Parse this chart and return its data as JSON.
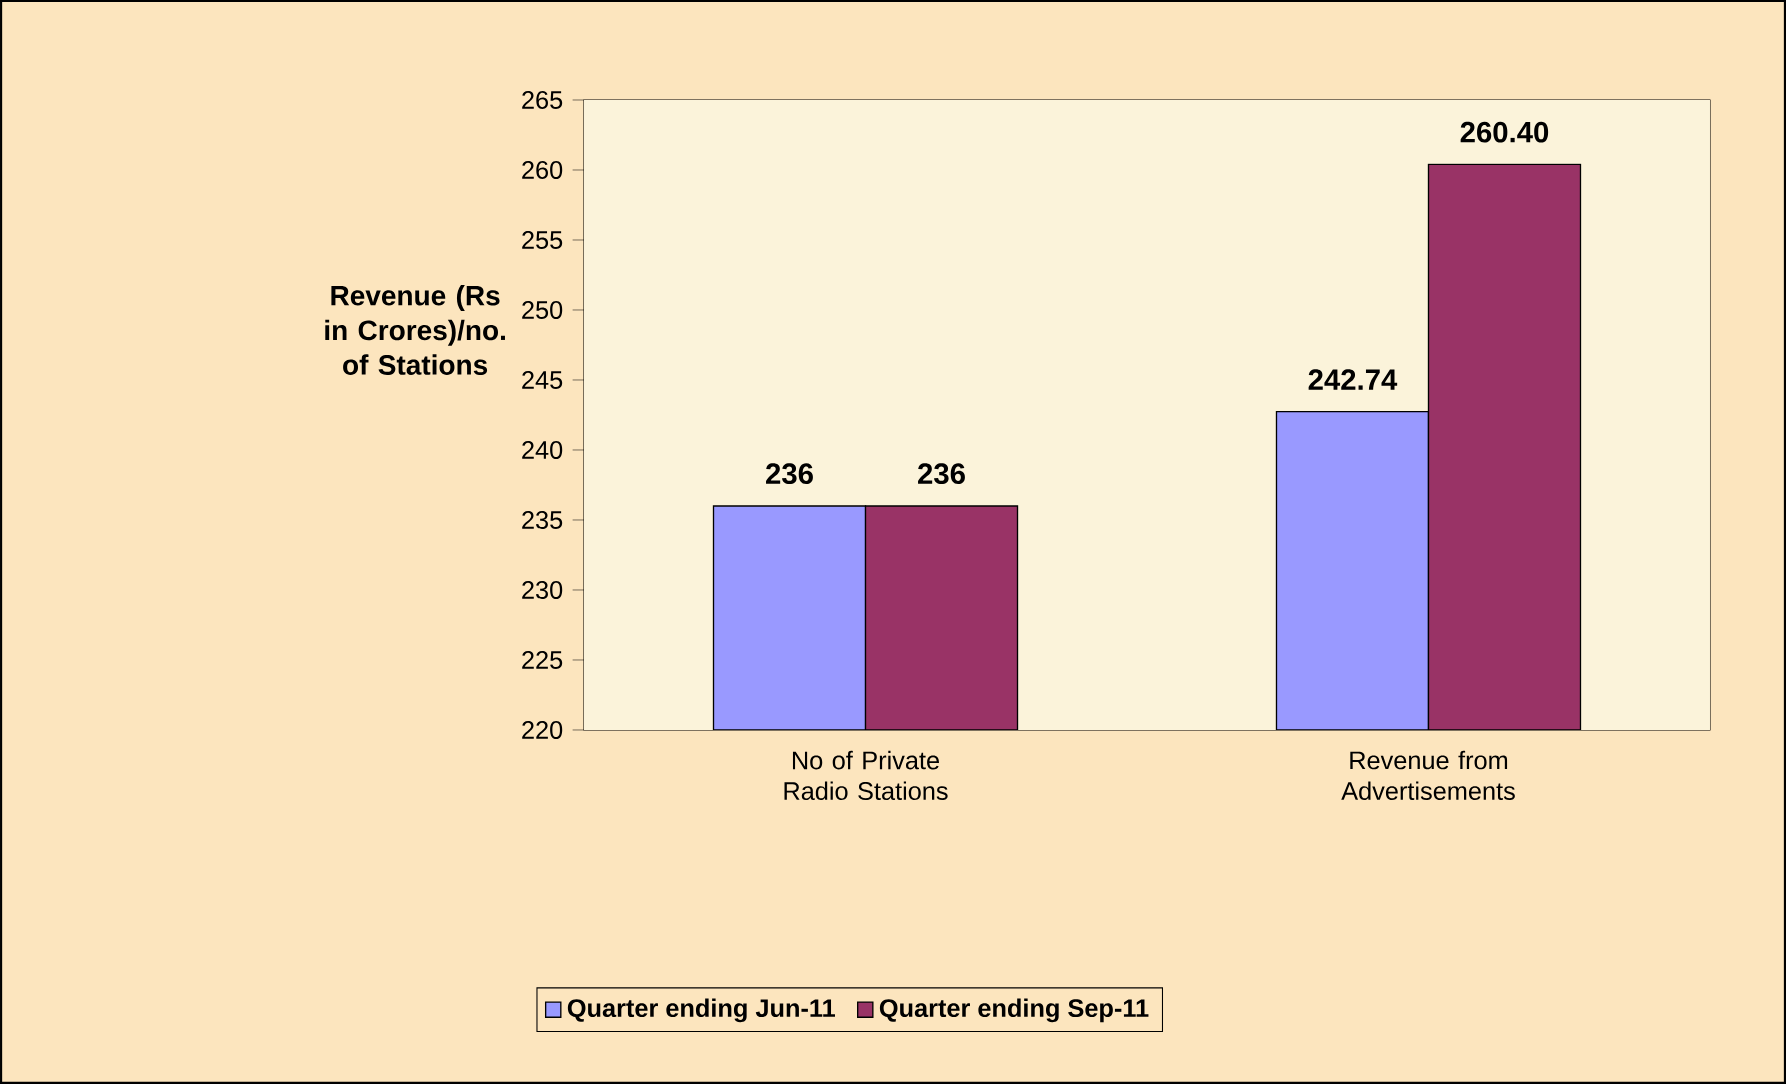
{
  "chart_data": {
    "type": "bar",
    "ylabel": "Revenue (Rs in Crores)/no. of Stations",
    "categories": [
      "No of  Private Radio Stations",
      "Revenue from Advertisements"
    ],
    "series": [
      {
        "name": "Quarter ending Jun-11",
        "color": "#9999ff",
        "values": [
          236,
          242.74
        ],
        "value_labels": [
          "236",
          "242.74"
        ]
      },
      {
        "name": "Quarter ending Sep-11",
        "color": "#993366",
        "values": [
          236,
          260.4
        ],
        "value_labels": [
          "236",
          "260.40"
        ]
      }
    ],
    "ylim": [
      220,
      265
    ],
    "yticks": [
      220,
      225,
      230,
      235,
      240,
      245,
      250,
      255,
      260,
      265
    ],
    "legend": "bottom"
  }
}
